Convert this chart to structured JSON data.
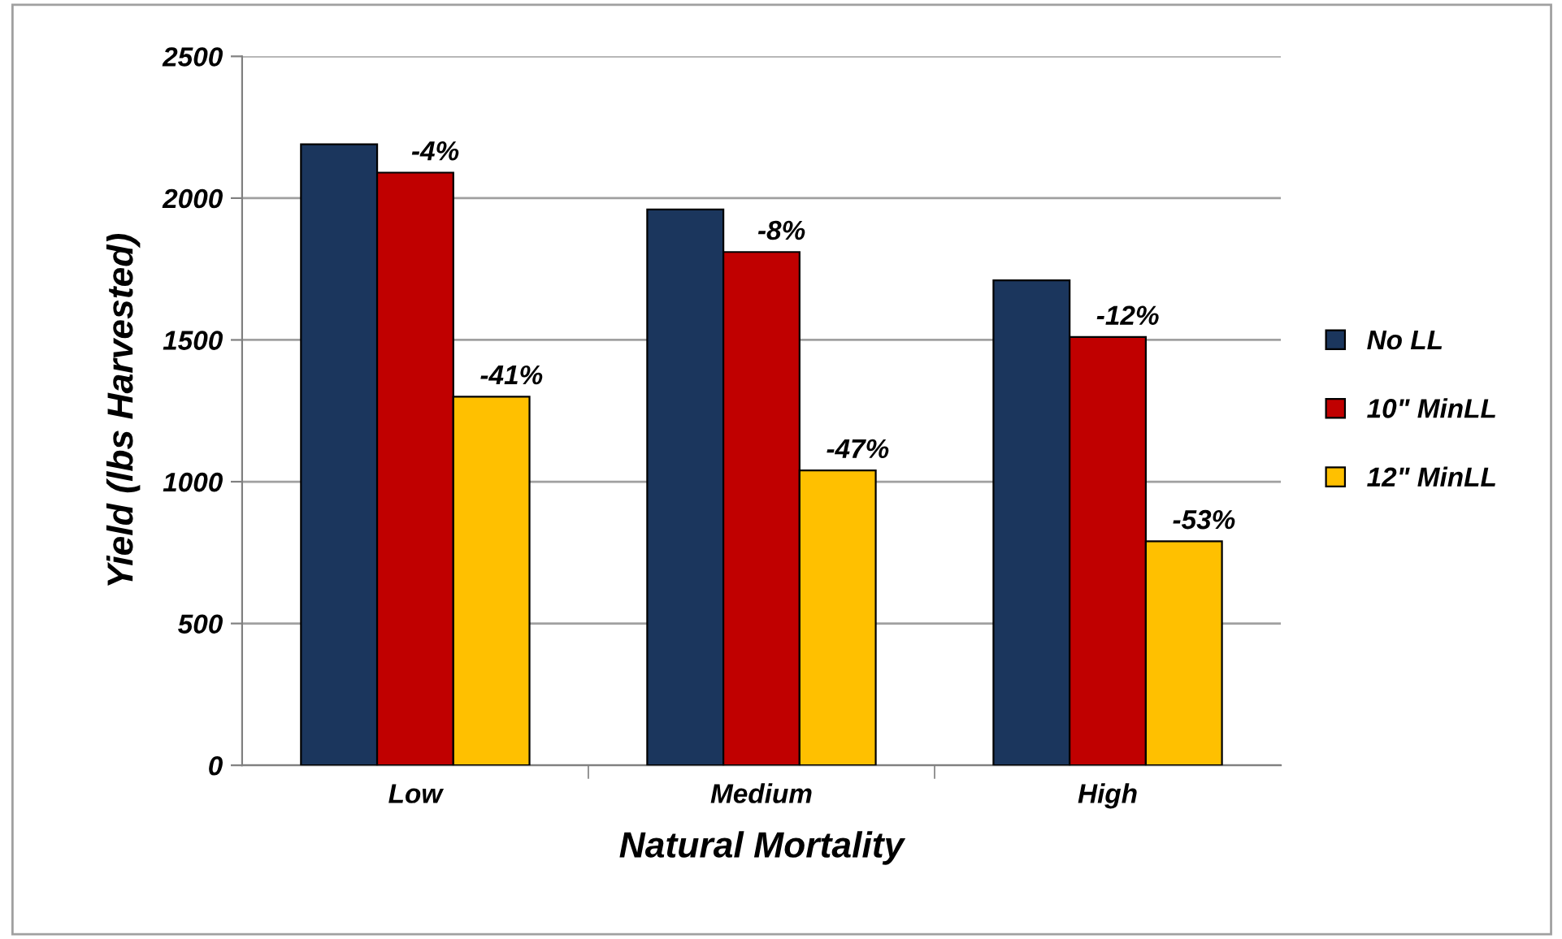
{
  "chart_data": {
    "type": "bar",
    "xlabel": "Natural Mortality",
    "ylabel": "Yield (lbs Harvested)",
    "categories": [
      "Low",
      "Medium",
      "High"
    ],
    "series": [
      {
        "name": "No LL",
        "color": "#1b365d",
        "values": [
          2190,
          1960,
          1710
        ]
      },
      {
        "name": "10\" MinLL",
        "color": "#c00000",
        "values": [
          2090,
          1810,
          1510
        ]
      },
      {
        "name": "12\" MinLL",
        "color": "#ffc000",
        "values": [
          1300,
          1040,
          790
        ]
      }
    ],
    "annotations": [
      "-4%",
      "-41%",
      "-8%",
      "-47%",
      "-12%",
      "-53%"
    ],
    "ylim": [
      0,
      2500
    ],
    "yticks": [
      0,
      500,
      1000,
      1500,
      2000,
      2500
    ],
    "grid": "y",
    "legend": "right"
  }
}
